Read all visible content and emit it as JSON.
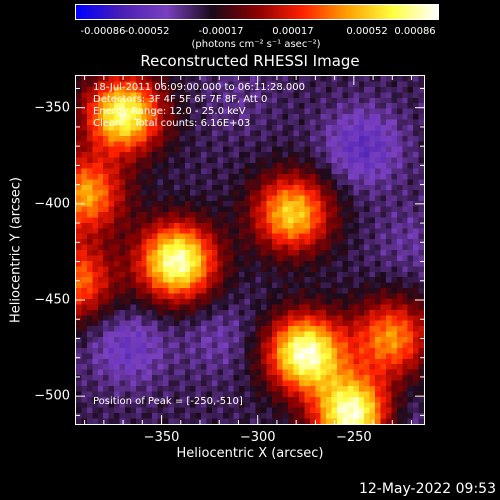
{
  "chart_data": {
    "type": "heatmap",
    "title": "Reconstructed RHESSI Image",
    "xlabel": "Heliocentric X (arcsec)",
    "ylabel": "Heliocentric Y (arcsec)",
    "xlim": [
      -395,
      -213
    ],
    "ylim": [
      -515,
      -333
    ],
    "x_ticks": [
      -350,
      -300,
      -250
    ],
    "y_ticks": [
      -350,
      -400,
      -450,
      -500
    ],
    "colorbar": {
      "min": -0.00086,
      "max": 0.00086,
      "tick_values": [
        -0.00086,
        -0.00052,
        -0.00017,
        0.00017,
        0.00052,
        0.00086
      ],
      "tick_labels": [
        "-0.00086",
        "-0.00052",
        "-0.00017",
        "0.00017",
        "0.00052",
        "0.00086"
      ],
      "unit_label": "(photons cm⁻² s⁻¹ asec⁻²)",
      "colors": [
        "#0000ff",
        "#4b1fb4",
        "#7a40c0",
        "#1a0a1a",
        "#8a0000",
        "#ff2000",
        "#ffa000",
        "#ffff40",
        "#ffffff"
      ]
    },
    "annotations": {
      "time_range": "18-Jul-2011 06:09:00.000 to 06:11:28.000",
      "detectors": "Detectors: 3F 4F 5F 6F 7F 8F, Att 0",
      "energy_range": "Energy Range: 12.0 - 25.0 keV",
      "method": "Clean    Total counts: 6.16E+03",
      "peak": "Position of Peak = [-250,-510]"
    },
    "sources": [
      {
        "x": -370,
        "y": -353,
        "value": 0.00072
      },
      {
        "x": -342,
        "y": -430,
        "value": 0.0008
      },
      {
        "x": -282,
        "y": -405,
        "value": 0.00055
      },
      {
        "x": -275,
        "y": -478,
        "value": 0.00082
      },
      {
        "x": -250,
        "y": -510,
        "value": 0.00086
      },
      {
        "x": -390,
        "y": -395,
        "value": 0.00045
      },
      {
        "x": -230,
        "y": -470,
        "value": 0.0004
      },
      {
        "x": -395,
        "y": -440,
        "value": 0.00035
      }
    ],
    "negative_regions": [
      {
        "x": -245,
        "y": -370,
        "value": -0.00055
      },
      {
        "x": -368,
        "y": -475,
        "value": -0.0005
      },
      {
        "x": -320,
        "y": -470,
        "value": -0.0004
      },
      {
        "x": -220,
        "y": -420,
        "value": -0.00038
      },
      {
        "x": -230,
        "y": -515,
        "value": -0.00045
      },
      {
        "x": -310,
        "y": -345,
        "value": -0.00035
      }
    ]
  },
  "timestamp": "12-May-2022 09:53"
}
